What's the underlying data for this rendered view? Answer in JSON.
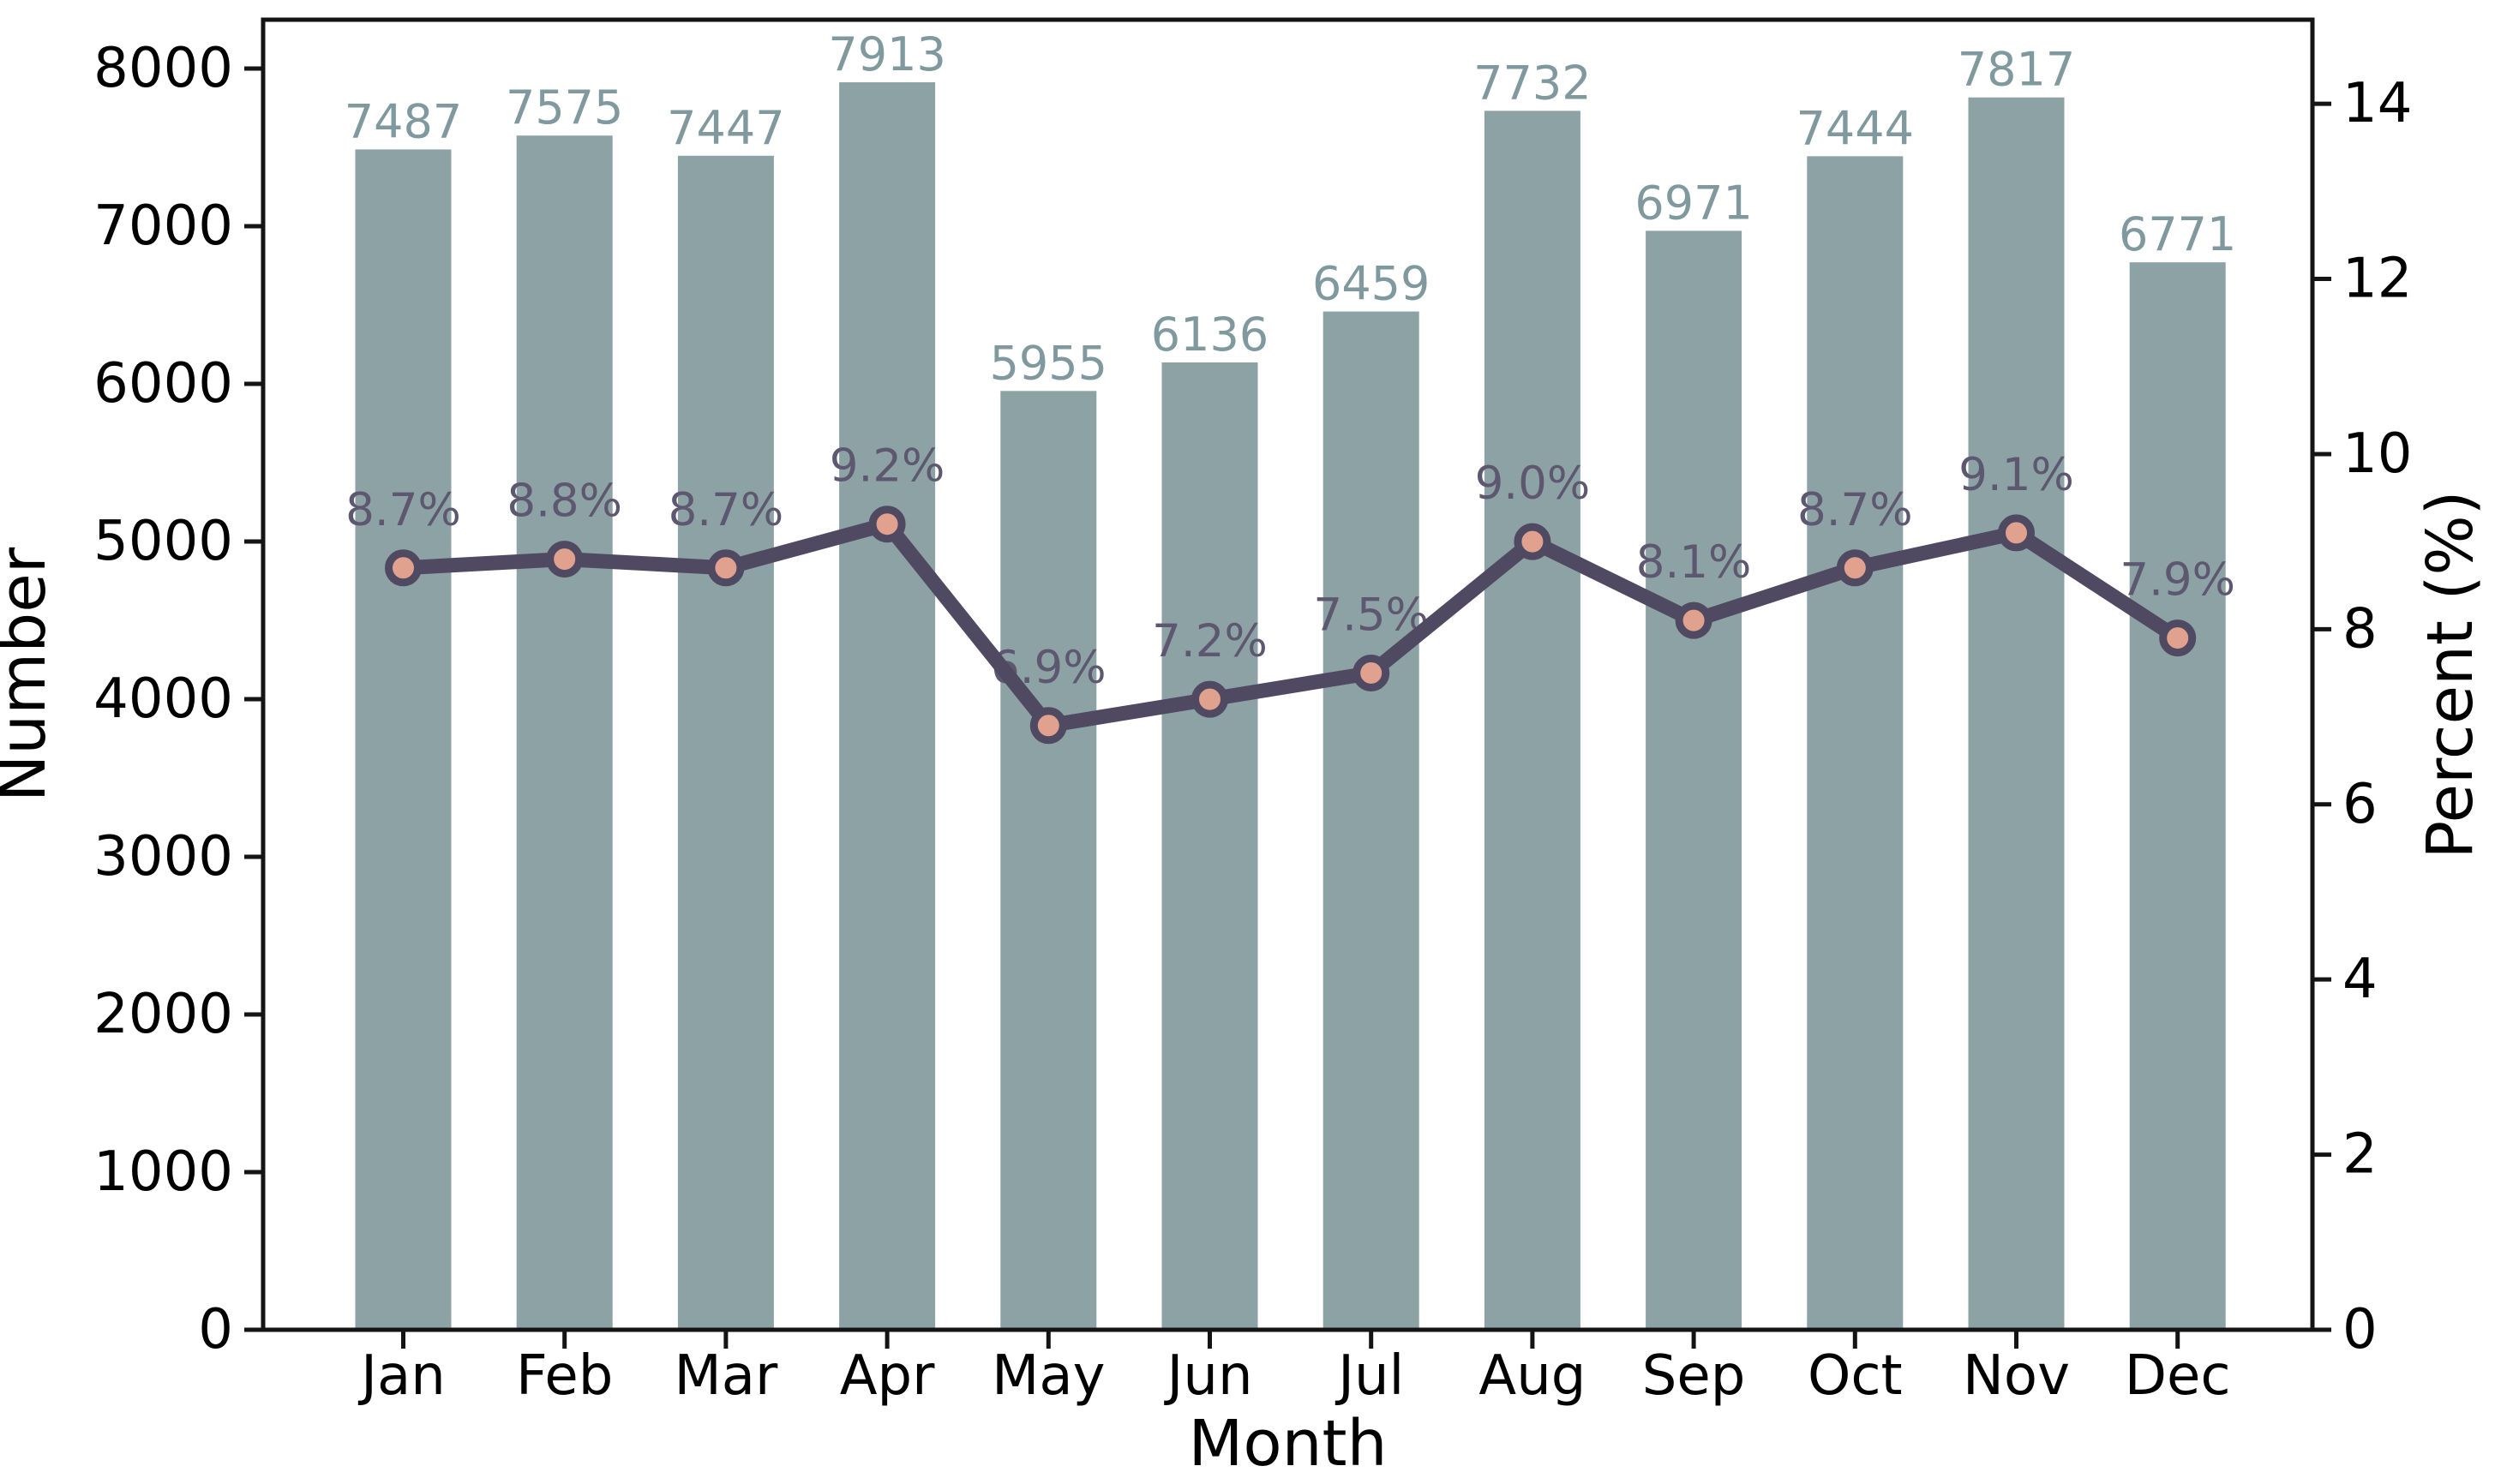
{
  "figure": {
    "background": "#ffffff"
  },
  "chart_data": {
    "type": "bar+line",
    "title": "",
    "categories": [
      "Jan",
      "Feb",
      "Mar",
      "Apr",
      "May",
      "Jun",
      "Jul",
      "Aug",
      "Sep",
      "Oct",
      "Nov",
      "Dec"
    ],
    "xlabel": "Month",
    "grid": false,
    "legend": "none",
    "axes": {
      "left": {
        "label": "Number",
        "ticks": [
          0,
          1000,
          2000,
          3000,
          4000,
          5000,
          6000,
          7000,
          8000
        ],
        "range": [
          0,
          8310
        ]
      },
      "right": {
        "label": "Percent (%)",
        "ticks": [
          0,
          2,
          4,
          6,
          8,
          10,
          12,
          14
        ],
        "range": [
          0,
          14.96
        ]
      }
    },
    "series": [
      {
        "name": "Number",
        "type": "bar",
        "axis": "left",
        "values": [
          7487,
          7575,
          7447,
          7913,
          5955,
          6136,
          6459,
          7732,
          6971,
          7444,
          7817,
          6771
        ],
        "labels": [
          "7487",
          "7575",
          "7447",
          "7913",
          "5955",
          "6136",
          "6459",
          "7732",
          "6971",
          "7444",
          "7817",
          "6771"
        ]
      },
      {
        "name": "Percent",
        "type": "line",
        "axis": "right",
        "values": [
          8.7,
          8.8,
          8.7,
          9.2,
          6.9,
          7.2,
          7.5,
          9.0,
          8.1,
          8.7,
          9.1,
          7.9
        ],
        "labels": [
          "8.7%",
          "8.8%",
          "8.7%",
          "9.2%",
          "6.9%",
          "7.2%",
          "7.5%",
          "9.0%",
          "8.1%",
          "8.7%",
          "9.1%",
          "7.9%"
        ]
      }
    ],
    "colors": {
      "bar": "#8ca2a4",
      "bar_label": "#7f999e",
      "line": "#4f4a62",
      "marker_fill": "#e0a28f",
      "percent_label": "#5d5870",
      "axis": "#141414",
      "tick_text": "#000000"
    }
  }
}
